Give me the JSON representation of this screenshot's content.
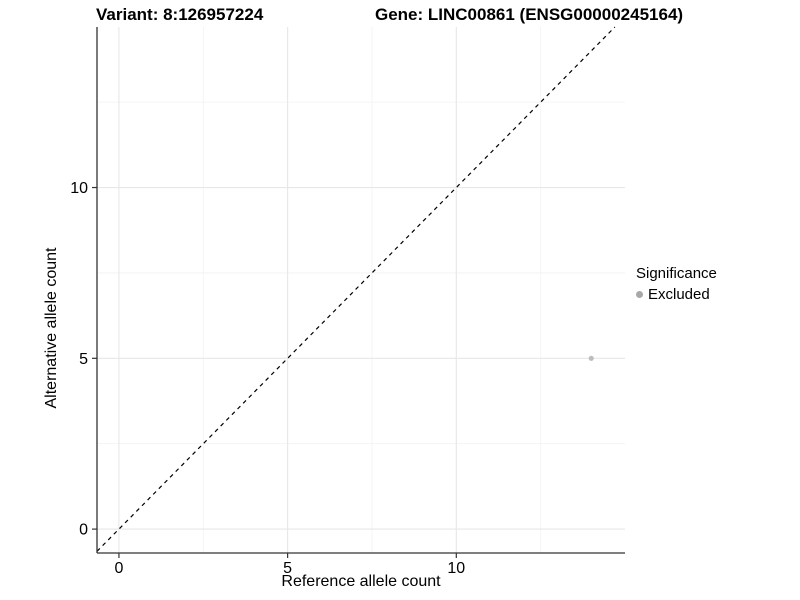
{
  "titles": {
    "variant": "Variant: 8:126957224",
    "gene": "Gene: LINC00861 (ENSG00000245164)"
  },
  "chart_data": {
    "type": "scatter",
    "title_left": "Variant: 8:126957224",
    "title_right": "Gene: LINC00861 (ENSG00000245164)",
    "xlabel": "Reference allele count",
    "ylabel": "Alternative allele count",
    "xlim": [
      -0.65,
      15.0
    ],
    "ylim": [
      -0.7,
      14.7
    ],
    "x_ticks": [
      0,
      5,
      10
    ],
    "y_ticks": [
      0,
      5,
      10
    ],
    "major_breaks": [
      0,
      5,
      10
    ],
    "minor_breaks": [
      2.5,
      7.5,
      12.5
    ],
    "grid": true,
    "reference_line": {
      "equation": "y = x",
      "style": "dashed",
      "color": "#000000"
    },
    "series": [
      {
        "name": "Excluded",
        "color": "#bdbdbd",
        "points": [
          {
            "x": 14,
            "y": 5
          }
        ]
      }
    ],
    "legend": {
      "title": "Significance",
      "position": "right",
      "items": [
        {
          "label": "Excluded",
          "color": "#a8a8a8"
        }
      ]
    }
  },
  "legend": {
    "title": "Significance",
    "item_excluded": "Excluded"
  },
  "axis": {
    "x_label": "Reference allele count",
    "y_label": "Alternative allele count"
  },
  "colors": {
    "background": "#ffffff",
    "axis_line": "#333333",
    "tick_mark": "#333333",
    "tick_text": "#000000",
    "grid_major": "#e7e7e7",
    "grid_minor": "#f2f2f2",
    "point": "#bdbdbd",
    "legend_key": "#a8a8a8",
    "reference_line": "#000000"
  }
}
